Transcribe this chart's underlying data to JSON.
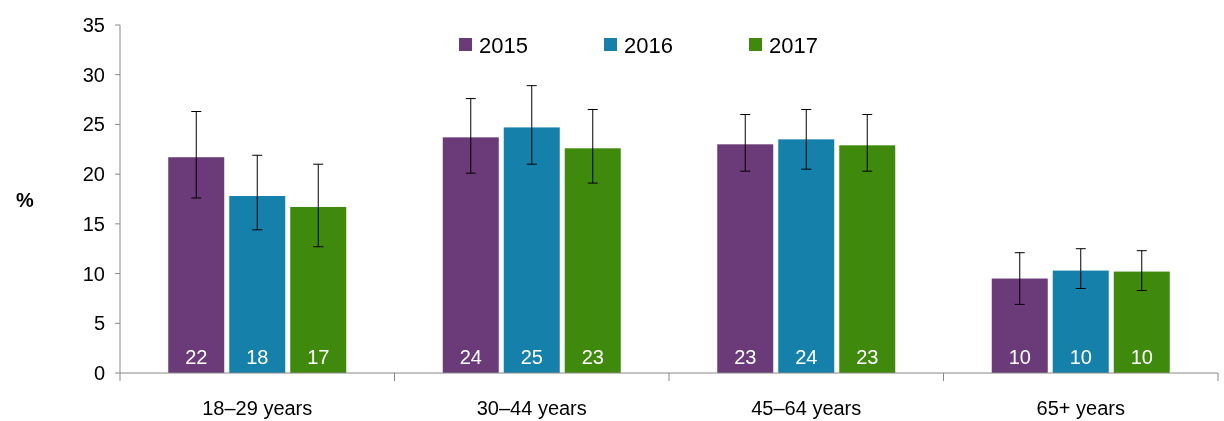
{
  "chart_data": {
    "type": "bar",
    "ylabel": "%",
    "categories": [
      "18–29 years",
      "30–44 years",
      "45–64 years",
      "65+ years"
    ],
    "series": [
      {
        "name": "2015",
        "color": "#6b3a78",
        "values": [
          21.7,
          23.7,
          23.0,
          9.5
        ],
        "errors": [
          [
            17.6,
            26.3
          ],
          [
            20.1,
            27.6
          ],
          [
            20.3,
            26.0
          ],
          [
            6.9,
            12.1
          ]
        ],
        "value_labels": [
          "22",
          "24",
          "23",
          "10"
        ]
      },
      {
        "name": "2016",
        "color": "#1581ab",
        "values": [
          17.8,
          24.7,
          23.5,
          10.3
        ],
        "errors": [
          [
            14.4,
            21.9
          ],
          [
            21.0,
            28.9
          ],
          [
            20.5,
            26.5
          ],
          [
            8.5,
            12.5
          ]
        ],
        "value_labels": [
          "18",
          "25",
          "24",
          "10"
        ]
      },
      {
        "name": "2017",
        "color": "#3f8a0c",
        "values": [
          16.7,
          22.6,
          22.9,
          10.2
        ],
        "errors": [
          [
            12.7,
            21.0
          ],
          [
            19.1,
            26.5
          ],
          [
            20.3,
            26.0
          ],
          [
            8.3,
            12.3
          ]
        ],
        "value_labels": [
          "17",
          "23",
          "23",
          "10"
        ]
      }
    ],
    "ylim": [
      0,
      35
    ],
    "yticks": [
      0,
      5,
      10,
      15,
      20,
      25,
      30,
      35
    ],
    "grid": false,
    "legend": "top"
  }
}
